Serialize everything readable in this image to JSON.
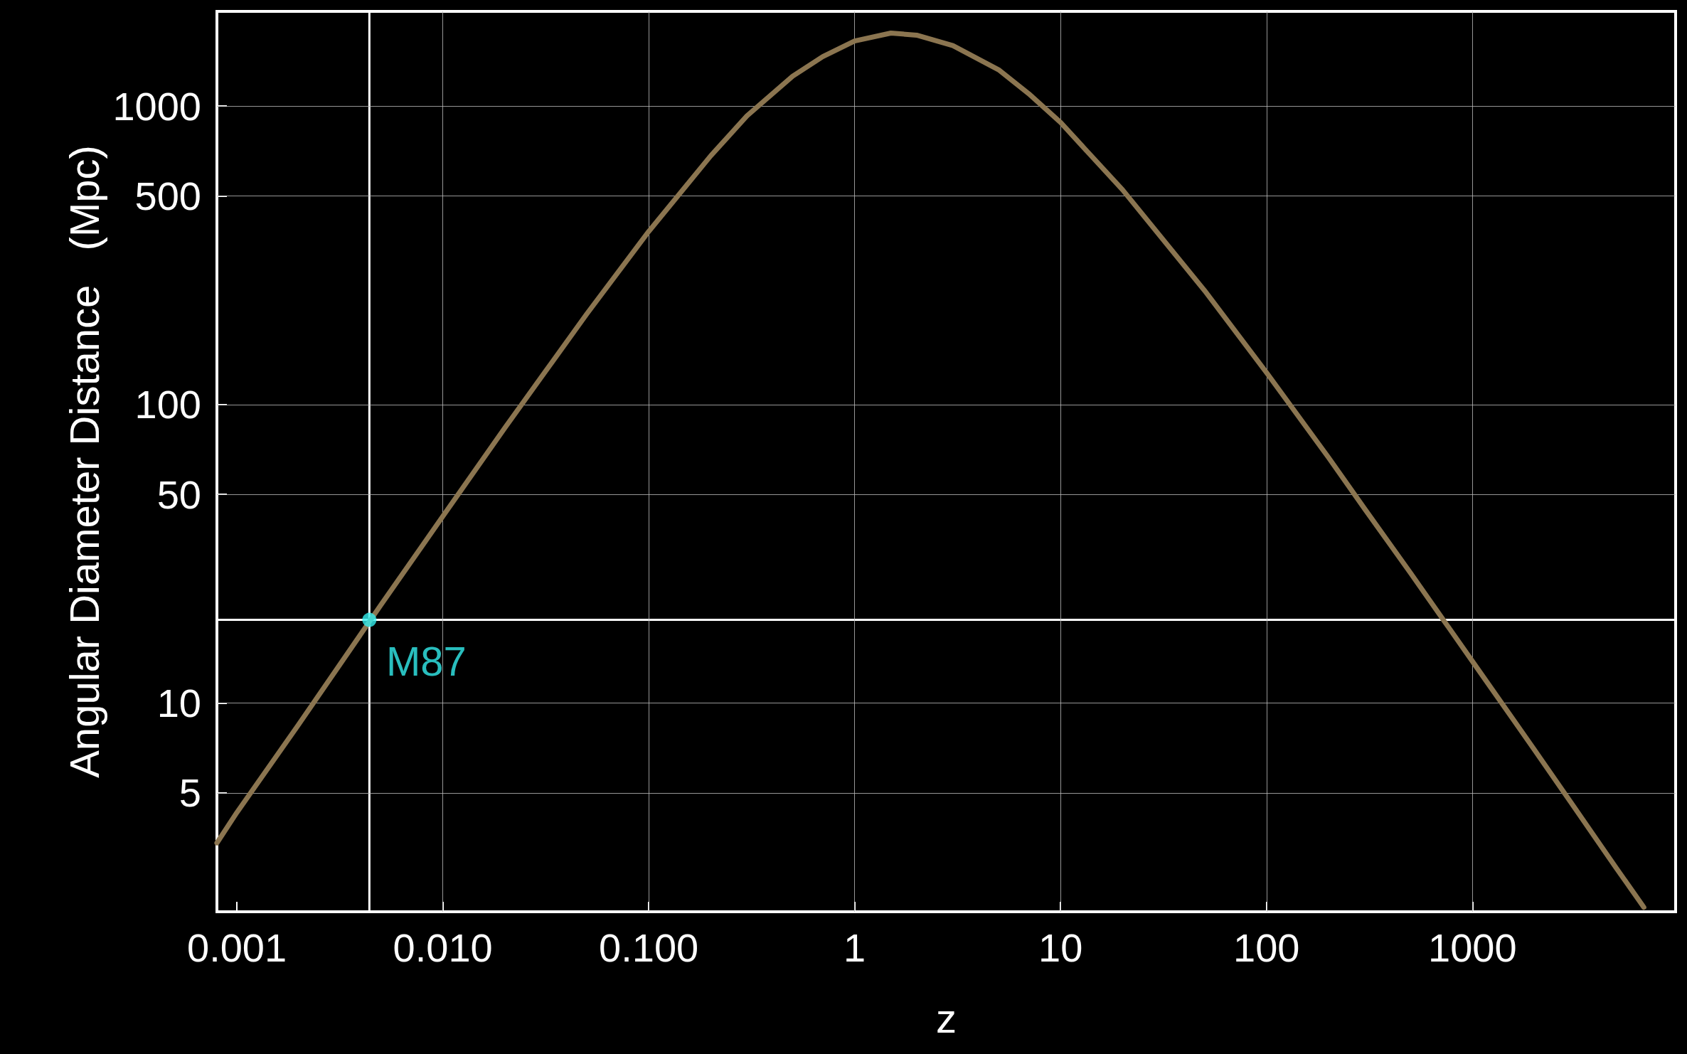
{
  "chart_data": {
    "type": "line",
    "xlabel": "z",
    "ylabel": "Angular Diameter Distance   (Mpc)",
    "log": "xy",
    "grid": true,
    "legend": false,
    "marker": "none",
    "line_style": "solid",
    "xlim": [
      0.0008,
      9700
    ],
    "ylim": [
      2,
      2075
    ],
    "xticks": [
      0.001,
      {
        "value": 0.01,
        "label": "0.010"
      },
      {
        "value": 0.1,
        "label": "0.100"
      },
      1,
      10,
      100,
      1000
    ],
    "yticks": [
      5,
      10,
      50,
      100,
      500,
      1000
    ],
    "ref_lines": [
      {
        "axis": "x",
        "value": 0.0044,
        "color": "#ffffff"
      },
      {
        "axis": "y",
        "value": 19,
        "color": "#ffffff"
      }
    ],
    "series": [
      {
        "color": "#8b7550",
        "x": [
          0.0008,
          0.001,
          0.002,
          0.005,
          0.01,
          0.02,
          0.05,
          0.1,
          0.2,
          0.3,
          0.5,
          0.7,
          1,
          1.5,
          2,
          3,
          5,
          7,
          10,
          20,
          50,
          100,
          200,
          300,
          500,
          1000,
          2000,
          3000,
          5000,
          6800
        ],
        "values": [
          3.4,
          4.3,
          8.5,
          21.3,
          42.2,
          83.5,
          201,
          380,
          681,
          927,
          1259,
          1464,
          1652,
          1755,
          1727,
          1593,
          1323,
          1100,
          881,
          524,
          241,
          128,
          66.5,
          44.7,
          27.3,
          13.8,
          6.98,
          4.66,
          2.8,
          2.07
        ]
      },
      {
        "type": "scatter",
        "name": "M87",
        "color": "#33eeee",
        "marker": "circle",
        "x": [
          0.0044
        ],
        "values": [
          19
        ]
      }
    ]
  }
}
